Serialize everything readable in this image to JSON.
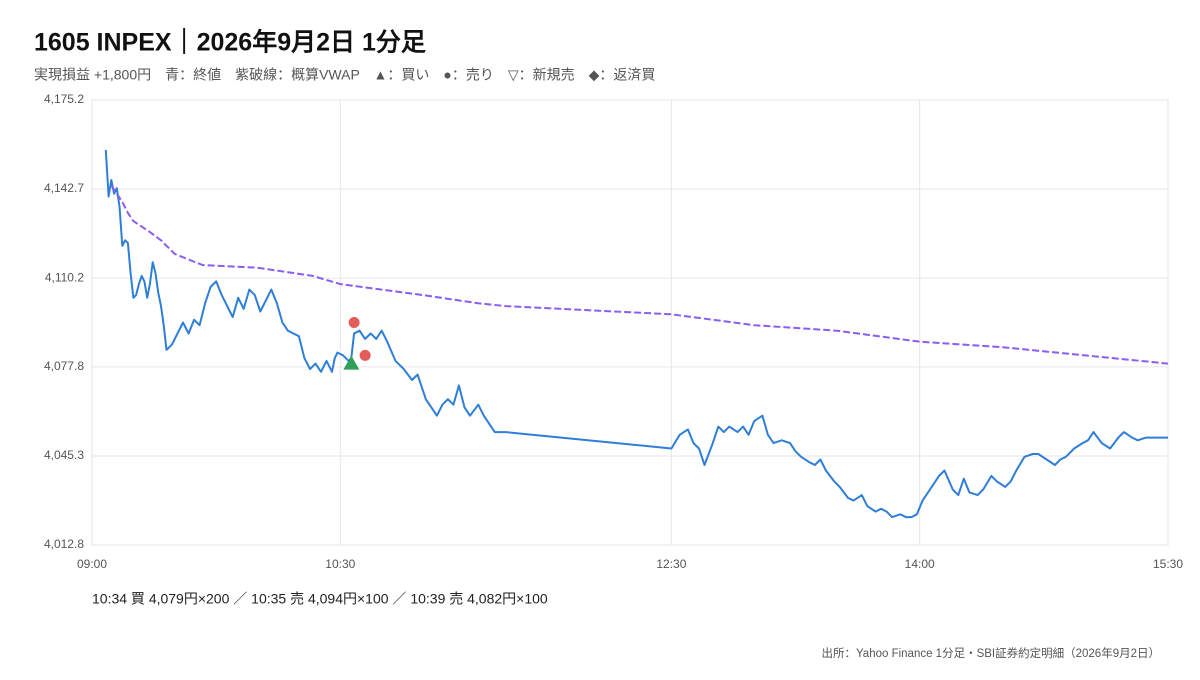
{
  "chart_data": {
    "type": "line",
    "title": "1605 INPEX｜2026年9月2日 1分足",
    "subtitle": "実現損益 +1,800円　青：終値　紫破線：概算VWAP　▲：買い　●：売り　▽：新規売　◆：返済買",
    "annotation": "10:34 買 4,079円×200 ／ 10:35 売 4,094円×100 ／ 10:39 売 4,082円×100",
    "source": "出所：Yahoo Finance 1分足・SBI証券約定明細（2026年9月2日）",
    "xlim": [
      540,
      930
    ],
    "xticks": [
      {
        "value": 540,
        "label": "09:00"
      },
      {
        "value": 630,
        "label": "10:30"
      },
      {
        "value": 750,
        "label": "12:30"
      },
      {
        "value": 840,
        "label": "14:00"
      },
      {
        "value": 930,
        "label": "15:30"
      }
    ],
    "ylim": [
      4012.8,
      4175.2
    ],
    "yticks": [
      {
        "value": 4012.8,
        "label": "4,012.8"
      },
      {
        "value": 4045.3,
        "label": "4,045.3"
      },
      {
        "value": 4077.8,
        "label": "4,077.8"
      },
      {
        "value": 4110.2,
        "label": "4,110.2"
      },
      {
        "value": 4142.7,
        "label": "4,142.7"
      },
      {
        "value": 4175.2,
        "label": "4,175.2"
      }
    ],
    "grid": true,
    "series": [
      {
        "color": "#2f7ed8",
        "style": "solid",
        "x": [
          545,
          546,
          547,
          548,
          549,
          550,
          551,
          552,
          553,
          554,
          555,
          556,
          557,
          558,
          559,
          560,
          561,
          562,
          563,
          564,
          565,
          566,
          567,
          569,
          571,
          573,
          575,
          577,
          579,
          581,
          583,
          585,
          587,
          589,
          591,
          593,
          595,
          597,
          599,
          601,
          603,
          605,
          607,
          609,
          611,
          613,
          615,
          617,
          619,
          621,
          623,
          625,
          627,
          628,
          629,
          631,
          633,
          634,
          635,
          637,
          639,
          641,
          643,
          645,
          647,
          650,
          653,
          656,
          658,
          661,
          663,
          665,
          667,
          669,
          671,
          673,
          675,
          677,
          680,
          682,
          684,
          686,
          690,
          750,
          753,
          756,
          758,
          760,
          762,
          765,
          767,
          769,
          771,
          774,
          776,
          778,
          780,
          783,
          785,
          787,
          790,
          793,
          795,
          797,
          800,
          802,
          804,
          806,
          809,
          811,
          814,
          816,
          819,
          821,
          824,
          826,
          828,
          830,
          833,
          835,
          837,
          839,
          841,
          843,
          845,
          847,
          849,
          852,
          854,
          856,
          858,
          861,
          863,
          866,
          868,
          871,
          873,
          875,
          878,
          881,
          883,
          886,
          889,
          891,
          893,
          896,
          899,
          901,
          903,
          906,
          909,
          912,
          914,
          917,
          919,
          922,
          926,
          930
        ],
        "values": [
          4157,
          4140,
          4146,
          4141,
          4143,
          4136,
          4122,
          4124,
          4123,
          4112,
          4103,
          4104,
          4108,
          4111,
          4109,
          4103,
          4108,
          4116,
          4112,
          4105,
          4100,
          4093,
          4084,
          4086,
          4090,
          4094,
          4090,
          4095,
          4093,
          4101,
          4107,
          4109,
          4104,
          4100,
          4096,
          4103,
          4099,
          4106,
          4104,
          4098,
          4102,
          4106,
          4101,
          4094,
          4091,
          4090,
          4089,
          4081,
          4077,
          4079,
          4076,
          4080,
          4076,
          4081,
          4083,
          4082,
          4080,
          4081,
          4090,
          4091,
          4088,
          4090,
          4088,
          4091,
          4087,
          4080,
          4077,
          4073,
          4075,
          4066,
          4063,
          4060,
          4064,
          4066,
          4064,
          4071,
          4063,
          4060,
          4064,
          4060,
          4057,
          4054,
          4054,
          4048,
          4053,
          4055,
          4050,
          4048,
          4042,
          4050,
          4056,
          4054,
          4056,
          4054,
          4056,
          4053,
          4058,
          4060,
          4053,
          4050,
          4051,
          4050,
          4047,
          4045,
          4043,
          4042,
          4044,
          4040,
          4036,
          4034,
          4030,
          4029,
          4031,
          4027,
          4025,
          4026,
          4025,
          4023,
          4024,
          4023,
          4023,
          4024,
          4029,
          4032,
          4035,
          4038,
          4040,
          4033,
          4031,
          4037,
          4032,
          4031,
          4033,
          4038,
          4036,
          4034,
          4036,
          4040,
          4045,
          4046,
          4046,
          4044,
          4042,
          4044,
          4045,
          4048,
          4050,
          4051,
          4054,
          4050,
          4048,
          4052,
          4054,
          4052,
          4051,
          4052,
          4052,
          4052
        ]
      },
      {
        "color": "#8b5cf6",
        "style": "dashed",
        "x": [
          547,
          549,
          551,
          553,
          555,
          558,
          561,
          565,
          570,
          575,
          580,
          600,
          620,
          630,
          660,
          680,
          690,
          750,
          780,
          810,
          840,
          870,
          900,
          930
        ],
        "values": [
          4144,
          4141,
          4138,
          4134,
          4131,
          4129,
          4127,
          4124,
          4119,
          4117,
          4115,
          4114,
          4111,
          4108,
          4104,
          4101,
          4100,
          4097,
          4093,
          4091,
          4087,
          4085,
          4082,
          4079
        ]
      }
    ],
    "trades": [
      {
        "x": 634,
        "y": 4079,
        "marker": "triangle",
        "color": "#2ea05a"
      },
      {
        "x": 635,
        "y": 4094,
        "marker": "circle",
        "color": "#e35b5b"
      },
      {
        "x": 639,
        "y": 4082,
        "marker": "circle",
        "color": "#e35b5b"
      }
    ]
  }
}
